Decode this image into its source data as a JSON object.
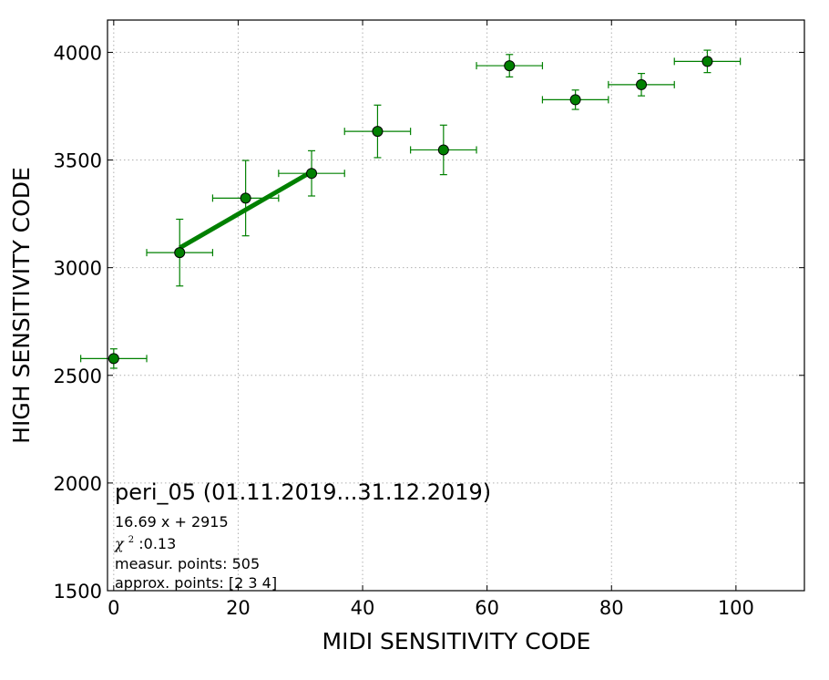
{
  "chart_data": {
    "type": "scatter",
    "title": "",
    "xlabel": "MIDI SENSITIVITY CODE",
    "ylabel": "HIGH SENSITIVITY CODE",
    "xlim": [
      -1,
      111
    ],
    "ylim": [
      1500,
      4150
    ],
    "xticks": [
      0,
      20,
      40,
      60,
      80,
      100
    ],
    "yticks": [
      1500,
      2000,
      2500,
      3000,
      3500,
      4000
    ],
    "grid": true,
    "color": "#008000",
    "points": [
      {
        "x": 0,
        "y": 2578,
        "xerr": 5.3,
        "yerr_low": 45,
        "yerr_high": 45
      },
      {
        "x": 10.6,
        "y": 3070,
        "xerr": 5.3,
        "yerr_low": 155,
        "yerr_high": 155
      },
      {
        "x": 21.2,
        "y": 3323,
        "xerr": 5.3,
        "yerr_low": 175,
        "yerr_high": 175
      },
      {
        "x": 31.8,
        "y": 3438,
        "xerr": 5.3,
        "yerr_low": 105,
        "yerr_high": 105
      },
      {
        "x": 42.4,
        "y": 3633,
        "xerr": 5.3,
        "yerr_low": 122,
        "yerr_high": 122
      },
      {
        "x": 53.0,
        "y": 3547,
        "xerr": 5.3,
        "yerr_low": 115,
        "yerr_high": 115
      },
      {
        "x": 63.6,
        "y": 3938,
        "xerr": 5.3,
        "yerr_low": 52,
        "yerr_high": 52
      },
      {
        "x": 74.2,
        "y": 3780,
        "xerr": 5.3,
        "yerr_low": 45,
        "yerr_high": 45
      },
      {
        "x": 84.8,
        "y": 3850,
        "xerr": 5.3,
        "yerr_low": 52,
        "yerr_high": 52
      },
      {
        "x": 95.4,
        "y": 3958,
        "xerr": 5.3,
        "yerr_low": 52,
        "yerr_high": 52
      }
    ],
    "fit_line": {
      "slope": 16.69,
      "intercept": 2915,
      "x_start": 10.6,
      "x_end": 31.8
    }
  },
  "annotations": {
    "main": "peri_05 (01.11.2019...31.12.2019)",
    "equation": "16.69 x + 2915",
    "chi_symbol": "χ",
    "chi_sup": "2",
    "chi_value": " :0.13",
    "measur_points": "measur. points: 505",
    "approx_points": "approx. points: [2 3 4]"
  }
}
